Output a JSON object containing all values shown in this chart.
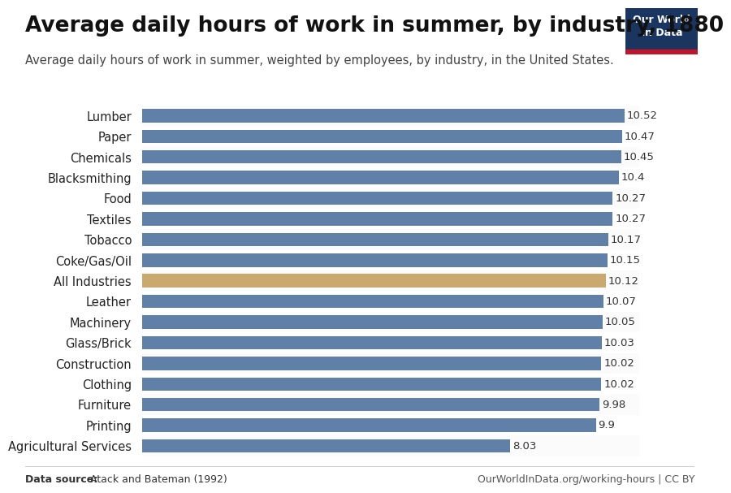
{
  "title": "Average daily hours of work in summer, by industry, 1880",
  "subtitle": "Average daily hours of work in summer, weighted by employees, by industry, in the United States.",
  "categories": [
    "Lumber",
    "Paper",
    "Chemicals",
    "Blacksmithing",
    "Food",
    "Textiles",
    "Tobacco",
    "Coke/Gas/Oil",
    "All Industries",
    "Leather",
    "Machinery",
    "Glass/Brick",
    "Construction",
    "Clothing",
    "Furniture",
    "Printing",
    "Agricultural Services"
  ],
  "values": [
    10.52,
    10.47,
    10.45,
    10.4,
    10.27,
    10.27,
    10.17,
    10.15,
    10.12,
    10.07,
    10.05,
    10.03,
    10.02,
    10.02,
    9.98,
    9.9,
    8.03
  ],
  "bar_color_default": "#6080a8",
  "bar_color_highlight": "#c9a96e",
  "highlight_index": 8,
  "xlim_left": 0,
  "xlim_right": 10.85,
  "data_source": "Data source: Atack and Bateman (1992)",
  "footer_right": "OurWorldInData.org/working-hours | CC BY",
  "background_color": "#ffffff",
  "title_fontsize": 19,
  "subtitle_fontsize": 10.5,
  "label_fontsize": 10.5,
  "value_fontsize": 9.5,
  "footer_fontsize": 9,
  "owid_box_color": "#1a3560",
  "owid_text": "Our World\nin Data",
  "owid_red_color": "#c0162c",
  "bar_height": 0.65
}
